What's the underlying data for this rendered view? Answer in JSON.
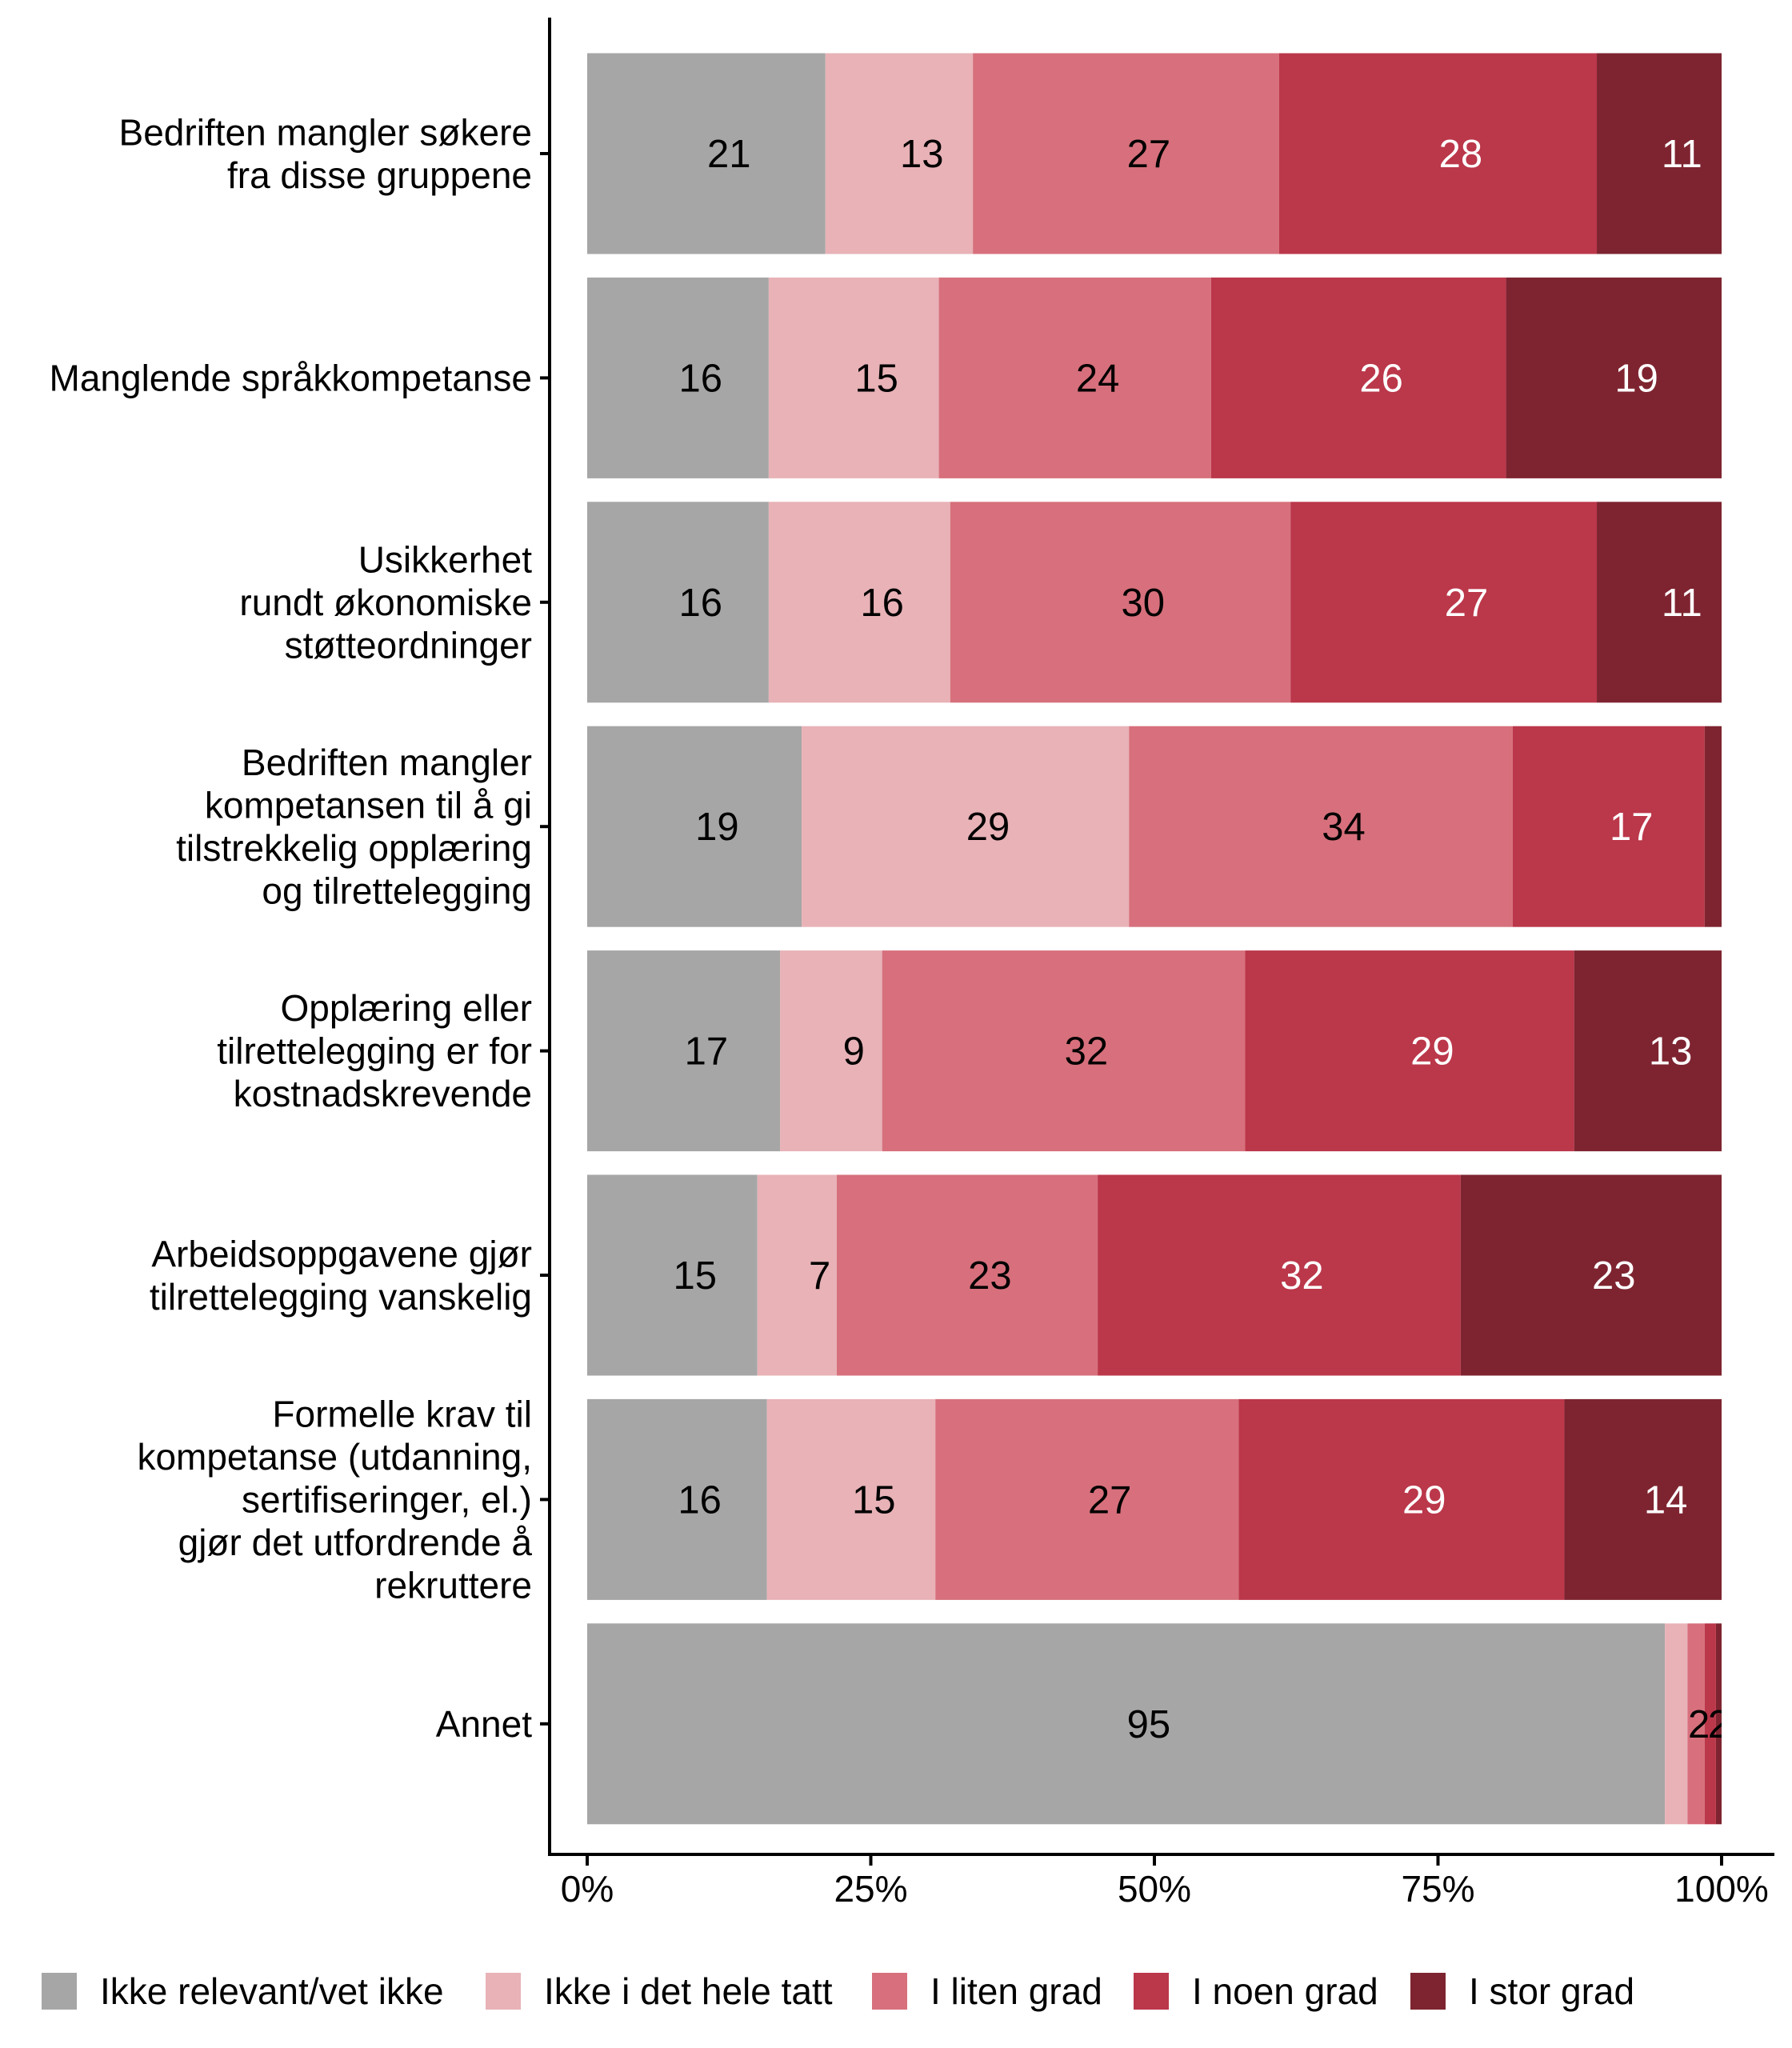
{
  "chart_data": {
    "type": "bar",
    "orientation": "horizontal",
    "stacked": true,
    "percent_scale": true,
    "title": "",
    "xlabel": "",
    "ylabel": "",
    "xlim": [
      0,
      100
    ],
    "x_ticks": [
      0,
      25,
      50,
      75,
      100
    ],
    "x_tick_labels": [
      "0%",
      "25%",
      "50%",
      "75%",
      "100%"
    ],
    "grid": false,
    "legend_position": "bottom",
    "categories": [
      [
        "Bedriften mangler søkere",
        "fra disse gruppene"
      ],
      [
        "Manglende språkkompetanse"
      ],
      [
        "Usikkerhet",
        "rundt økonomiske",
        "støtteordninger"
      ],
      [
        "Bedriften mangler",
        "kompetansen til å gi",
        "tilstrekkelig opplæring",
        "og tilrettelegging"
      ],
      [
        "Opplæring eller",
        "tilrettelegging er for",
        "kostnadskrevende"
      ],
      [
        "Arbeidsoppgavene gjør",
        "tilrettelegging vanskelig"
      ],
      [
        "Formelle krav til",
        "kompetanse (utdanning,",
        "sertifiseringer, el.)",
        "gjør det utfordrende å",
        "rekruttere"
      ],
      [
        "Annet"
      ]
    ],
    "series": [
      {
        "name": "Ikke relevant/vet ikke",
        "color": "#A6A6A6",
        "label_color": "#000000",
        "values": [
          21,
          16,
          16,
          19,
          17,
          15,
          16,
          95
        ],
        "labels": [
          "21",
          "16",
          "16",
          "19",
          "17",
          "15",
          "16",
          "95"
        ]
      },
      {
        "name": "Ikke i det hele tatt",
        "color": "#E8B2B7",
        "label_color": "#000000",
        "values": [
          13,
          15,
          16,
          29,
          9,
          7,
          15,
          2
        ],
        "labels": [
          "13",
          "15",
          "16",
          "29",
          "9",
          "7",
          "15",
          "2"
        ]
      },
      {
        "name": "I liten grad",
        "color": "#D7707C",
        "label_color": "#000000",
        "values": [
          27,
          24,
          30,
          34,
          32,
          23,
          27,
          1.5
        ],
        "labels": [
          "27",
          "24",
          "30",
          "34",
          "32",
          "23",
          "27",
          "2"
        ]
      },
      {
        "name": "I noen grad",
        "color": "#BB374A",
        "label_color": "#FFFFFF",
        "values": [
          28,
          26,
          27,
          17,
          29,
          32,
          29,
          1
        ],
        "labels": [
          "28",
          "26",
          "27",
          "17",
          "29",
          "32",
          "29",
          "1"
        ]
      },
      {
        "name": "I stor grad",
        "color": "#7E2430",
        "label_color": "#FFFFFF",
        "values": [
          11,
          19,
          11,
          1.5,
          13,
          23,
          14,
          0.5
        ],
        "labels": [
          "11",
          "19",
          "11",
          "2",
          "13",
          "23",
          "14",
          ""
        ]
      }
    ]
  }
}
